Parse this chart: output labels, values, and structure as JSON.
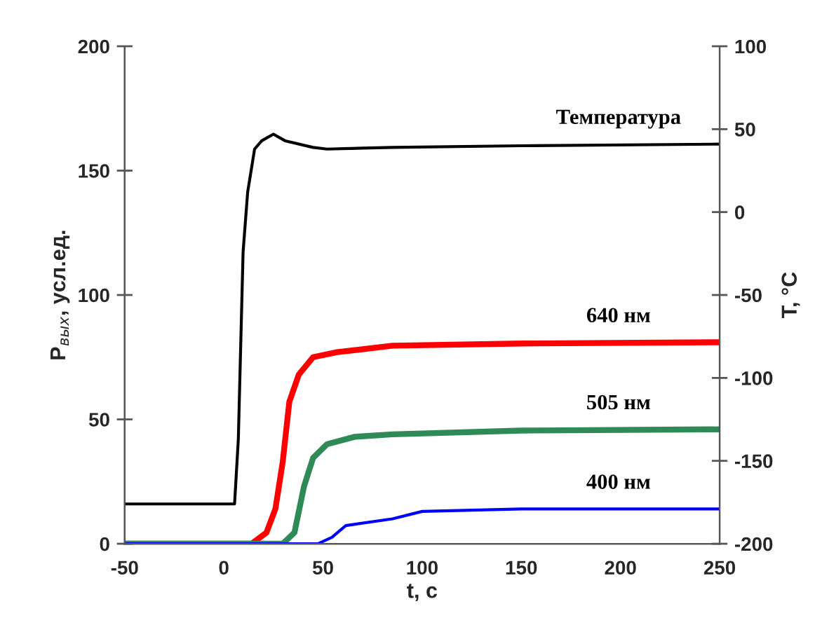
{
  "chart_data": {
    "type": "line",
    "xlabel": "t, c",
    "ylabel": "P$_{вых}$, усл.ед.",
    "y2label": "T, °C",
    "xlim": [
      -50,
      250
    ],
    "xticks": [
      -50,
      0,
      50,
      100,
      150,
      200,
      250
    ],
    "ylim": [
      0,
      200
    ],
    "yticks": [
      0,
      50,
      100,
      150,
      200
    ],
    "y2lim": [
      -200,
      100
    ],
    "y2ticks": [
      -200,
      -150,
      -100,
      -50,
      0,
      50,
      100
    ],
    "grid": false,
    "legend": false,
    "marker": "none",
    "line_style": "solid",
    "series": [
      {
        "name": "Температура",
        "color": "#000000",
        "axis": "y2",
        "x": [
          -50,
          -30,
          0,
          5.4,
          7.3,
          9.7,
          12,
          15.5,
          19.1,
          25,
          30.9,
          45,
          52,
          85,
          150,
          250
        ],
        "values": [
          -176,
          -176,
          -176,
          -176,
          -137,
          -24,
          12,
          38,
          43,
          47,
          43,
          39,
          38,
          39,
          40,
          41
        ]
      },
      {
        "name": "640 нм",
        "color": "#ff0000",
        "x": [
          -50,
          0,
          14,
          21.5,
          26,
          29.7,
          33,
          37.8,
          45,
          57,
          85,
          150,
          250
        ],
        "values": [
          0,
          0,
          0,
          4.5,
          14,
          33,
          57,
          68,
          75,
          77,
          79.6,
          80.5,
          81
        ]
      },
      {
        "name": "505 нм",
        "color": "#2e8b57",
        "x": [
          -50,
          29.7,
          35.6,
          40.4,
          45,
          52,
          66,
          85,
          150,
          250
        ],
        "values": [
          0,
          0,
          4.5,
          23,
          34.5,
          40,
          43,
          44,
          45.5,
          46
        ]
      },
      {
        "name": "400 нм",
        "color": "#0000ff",
        "x": [
          -50,
          47.4,
          54.5,
          61.5,
          85,
          100,
          150,
          250
        ],
        "values": [
          0,
          0,
          2.6,
          7.3,
          10,
          13,
          14,
          14
        ]
      }
    ]
  }
}
